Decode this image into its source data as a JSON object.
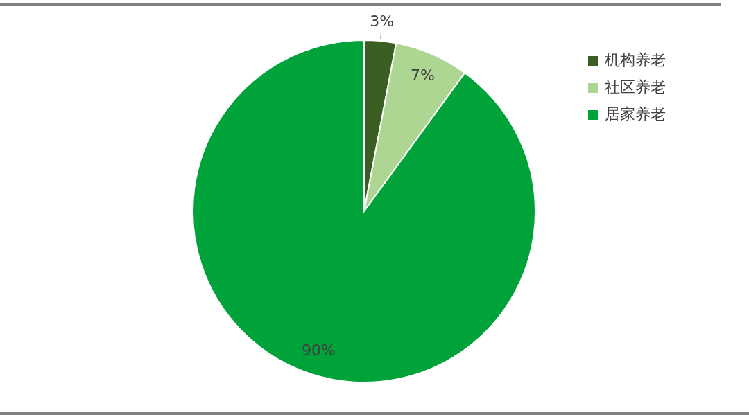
{
  "chart_data": {
    "type": "pie",
    "categories": [
      "机构养老",
      "社区养老",
      "居家养老"
    ],
    "values": [
      3,
      7,
      90
    ],
    "colors": [
      "#3b5e23",
      "#acd692",
      "#00a23a"
    ],
    "value_labels": [
      "3%",
      "7%",
      "90%"
    ],
    "legend": "top right"
  }
}
